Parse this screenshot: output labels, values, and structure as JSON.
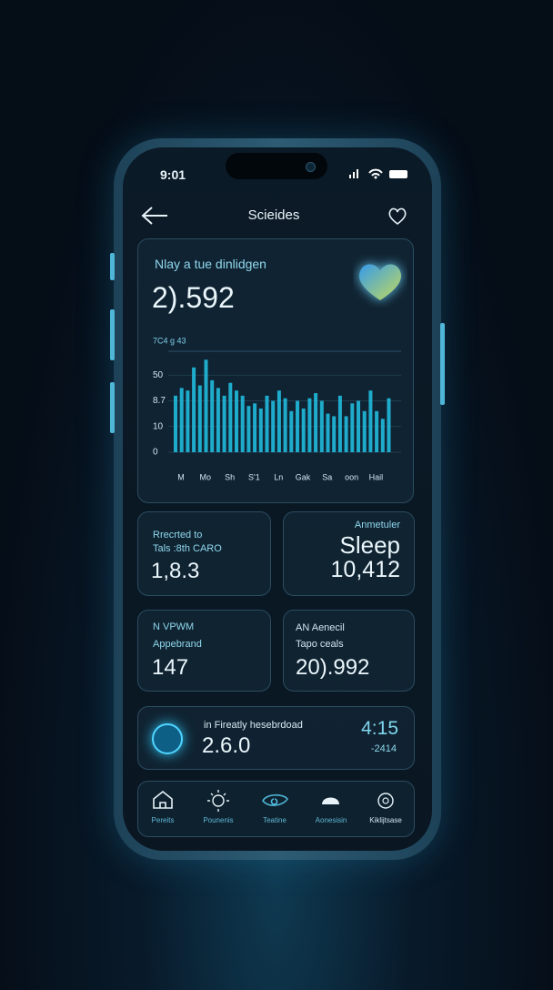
{
  "status_bar": {
    "time": "9:01"
  },
  "header": {
    "title": "Scieides"
  },
  "summary_card": {
    "title": "Nlay a tue dinlidgen",
    "value": "2).592"
  },
  "chart_data": {
    "type": "bar",
    "subtitle": "7C4 g 43",
    "categories": [
      "M",
      null,
      null,
      null,
      "Mo",
      null,
      null,
      null,
      "Sh",
      null,
      null,
      null,
      "S'1",
      null,
      null,
      null,
      "Ln",
      null,
      null,
      null,
      "Gak",
      null,
      null,
      null,
      "Sa",
      null,
      null,
      null,
      "oon",
      null,
      null,
      null,
      "Hail",
      null,
      null,
      null
    ],
    "values": [
      22,
      25,
      24,
      33,
      26,
      36,
      28,
      25,
      22,
      27,
      24,
      22,
      18,
      19,
      17,
      22,
      20,
      24,
      21,
      16,
      20,
      17,
      21,
      23,
      20,
      15,
      14,
      22,
      14,
      19,
      20,
      16,
      24,
      16,
      13,
      21
    ],
    "color": "#22c3e6",
    "ylim": [
      0,
      40
    ],
    "yticks": [
      0,
      10,
      {
        "value": 20,
        "label": "8.7"
      },
      {
        "value": 30,
        "label": "50"
      }
    ],
    "grid": true
  },
  "cards": [
    {
      "label": "Rrecrted to",
      "sublabel": "Tals :8th CARO",
      "value": "1,8.3"
    },
    {
      "label": "Anmetuler",
      "sublabel": "Sleep",
      "value": "10,412"
    },
    {
      "label": "N VPWM",
      "sublabel": "Appebrand",
      "value": "147"
    },
    {
      "label": "AN Aenecil",
      "sublabel": "Tapo ceals",
      "value": "20).992"
    }
  ],
  "banner": {
    "label": "in Fireatly hesebrdoad",
    "value": "2.6.0",
    "time": "4:15",
    "delta": "-2414"
  },
  "nav": [
    "Pereits",
    "Pounenis",
    "Teatine",
    "Aonesisin",
    "Kiklijtsase"
  ]
}
